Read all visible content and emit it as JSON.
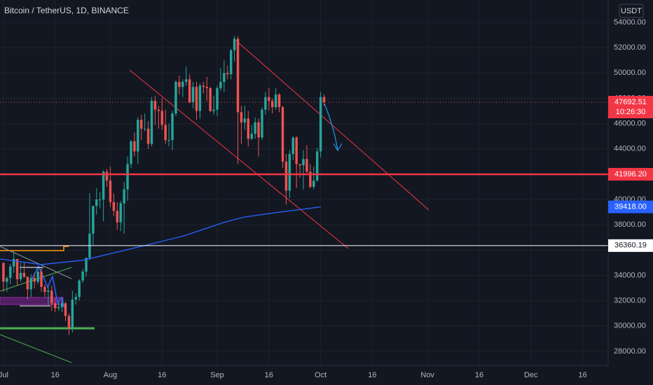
{
  "chart_data": {
    "type": "candlestick",
    "title": "Bitcoin / TetherUS, 1D, BINANCE",
    "currency": "USDT",
    "countdown": "10:26:30",
    "up_color": "#26a69a",
    "down_color": "#ef5350",
    "grid": true,
    "xlim": [
      -1,
      175.4
    ],
    "ylim": [
      26890,
      55770
    ],
    "xticks": [
      {
        "value": 0,
        "label": "Jul"
      },
      {
        "value": 15,
        "label": "16"
      },
      {
        "value": 31,
        "label": "Aug"
      },
      {
        "value": 46,
        "label": "16"
      },
      {
        "value": 62,
        "label": "Sep"
      },
      {
        "value": 77,
        "label": "16"
      },
      {
        "value": 92,
        "label": "Oct"
      },
      {
        "value": 107,
        "label": "16"
      },
      {
        "value": 123,
        "label": "Nov"
      },
      {
        "value": 138,
        "label": "16"
      },
      {
        "value": 153,
        "label": "Dec"
      },
      {
        "value": 168,
        "label": "16"
      }
    ],
    "yticks": [
      {
        "value": 28000,
        "label": "28000.00"
      },
      {
        "value": 30000,
        "label": "30000.00"
      },
      {
        "value": 32000,
        "label": "32000.00"
      },
      {
        "value": 34000,
        "label": "34000.00"
      },
      {
        "value": 36000,
        "label": "36000.00"
      },
      {
        "value": 38000,
        "label": "38000.00"
      },
      {
        "value": 40000,
        "label": "40000.00"
      },
      {
        "value": 42000,
        "label": "42000.00"
      },
      {
        "value": 44000,
        "label": "44000.00"
      },
      {
        "value": 46000,
        "label": "46000.00"
      },
      {
        "value": 48000,
        "label": "48000.00"
      },
      {
        "value": 50000,
        "label": "50000.00"
      },
      {
        "value": 52000,
        "label": "52000.00"
      },
      {
        "value": 54000,
        "label": "54000.00"
      }
    ],
    "x": [
      0,
      1,
      2,
      3,
      4,
      5,
      6,
      7,
      8,
      9,
      10,
      11,
      12,
      13,
      14,
      15,
      16,
      17,
      18,
      19,
      20,
      21,
      22,
      23,
      24,
      25,
      26,
      27,
      28,
      29,
      30,
      31,
      32,
      33,
      34,
      35,
      36,
      37,
      38,
      39,
      40,
      41,
      42,
      43,
      44,
      45,
      46,
      47,
      48,
      49,
      50,
      51,
      52,
      53,
      54,
      55,
      56,
      57,
      58,
      59,
      60,
      61,
      62,
      63,
      64,
      65,
      66,
      67,
      68,
      69,
      70,
      71,
      72,
      73,
      74,
      75,
      76,
      77,
      78,
      79,
      80,
      81,
      82,
      83,
      84,
      85,
      86,
      87,
      88,
      89,
      90,
      91,
      92,
      93
    ],
    "candles": [
      [
        35000,
        35000,
        32700,
        33500
      ],
      [
        33500,
        33900,
        32700,
        33800
      ],
      [
        33800,
        34900,
        33300,
        34700
      ],
      [
        34700,
        35900,
        34200,
        35300
      ],
      [
        35300,
        35300,
        33200,
        33700
      ],
      [
        33700,
        35000,
        33500,
        34200
      ],
      [
        34200,
        35000,
        33800,
        33900
      ],
      [
        33900,
        33900,
        32100,
        32900
      ],
      [
        32900,
        34100,
        32300,
        33800
      ],
      [
        33800,
        34200,
        33000,
        33500
      ],
      [
        33500,
        34600,
        33300,
        34300
      ],
      [
        34300,
        34600,
        32700,
        33100
      ],
      [
        33100,
        33300,
        32300,
        32700
      ],
      [
        32700,
        33100,
        31600,
        32800
      ],
      [
        32800,
        33200,
        31200,
        31800
      ],
      [
        31800,
        32200,
        31100,
        31400
      ],
      [
        31400,
        31900,
        31200,
        31500
      ],
      [
        31500,
        32200,
        31100,
        31800
      ],
      [
        31800,
        31900,
        30400,
        30800
      ],
      [
        30800,
        31000,
        29300,
        29800
      ],
      [
        29800,
        32800,
        29500,
        32100
      ],
      [
        32100,
        32600,
        31700,
        32300
      ],
      [
        32300,
        33700,
        32000,
        33600
      ],
      [
        33600,
        34500,
        33400,
        34300
      ],
      [
        34300,
        35400,
        33900,
        35400
      ],
      [
        35400,
        40500,
        35200,
        37300
      ],
      [
        37300,
        39500,
        36400,
        39500
      ],
      [
        39500,
        40900,
        38800,
        40000
      ],
      [
        40000,
        40600,
        39300,
        40000
      ],
      [
        40000,
        42300,
        38300,
        42200
      ],
      [
        42200,
        42400,
        41000,
        41500
      ],
      [
        41500,
        42600,
        39400,
        39800
      ],
      [
        39800,
        40500,
        38700,
        39100
      ],
      [
        39100,
        39800,
        37600,
        38200
      ],
      [
        38200,
        39900,
        37500,
        39700
      ],
      [
        39700,
        41400,
        37300,
        40800
      ],
      [
        40800,
        43400,
        39900,
        42800
      ],
      [
        42800,
        44700,
        42500,
        44600
      ],
      [
        44600,
        45300,
        43400,
        43800
      ],
      [
        43800,
        46500,
        42800,
        46300
      ],
      [
        46300,
        46700,
        44700,
        45600
      ],
      [
        45600,
        46800,
        45400,
        45600
      ],
      [
        45600,
        46200,
        44000,
        44400
      ],
      [
        44400,
        48100,
        44200,
        47800
      ],
      [
        47800,
        48200,
        45900,
        47100
      ],
      [
        47100,
        47400,
        45600,
        47000
      ],
      [
        47000,
        48000,
        45500,
        45900
      ],
      [
        45900,
        47100,
        44400,
        44700
      ],
      [
        44700,
        46000,
        44200,
        44700
      ],
      [
        44700,
        47000,
        43900,
        46800
      ],
      [
        46800,
        49400,
        46600,
        49300
      ],
      [
        49300,
        49800,
        48300,
        48900
      ],
      [
        48900,
        49500,
        48100,
        49300
      ],
      [
        49300,
        50500,
        49000,
        49500
      ],
      [
        49500,
        49900,
        47600,
        47700
      ],
      [
        47700,
        49300,
        47200,
        48900
      ],
      [
        48900,
        49300,
        46300,
        47000
      ],
      [
        47000,
        49200,
        46400,
        49000
      ],
      [
        49000,
        49300,
        48400,
        48900
      ],
      [
        48900,
        49700,
        47800,
        48800
      ],
      [
        48800,
        48900,
        46900,
        47000
      ],
      [
        47000,
        48200,
        46700,
        47100
      ],
      [
        47100,
        49000,
        46600,
        48800
      ],
      [
        48800,
        50400,
        48600,
        49300
      ],
      [
        49300,
        51000,
        48500,
        50000
      ],
      [
        50000,
        50600,
        49500,
        49900
      ],
      [
        49900,
        51900,
        49500,
        51800
      ],
      [
        51800,
        52900,
        50900,
        52700
      ],
      [
        52700,
        52900,
        42800,
        46900
      ],
      [
        46900,
        47400,
        44400,
        46100
      ],
      [
        46100,
        47400,
        45500,
        46400
      ],
      [
        46400,
        47000,
        44200,
        44800
      ],
      [
        44800,
        45900,
        44700,
        45200
      ],
      [
        45200,
        46500,
        44800,
        46100
      ],
      [
        46100,
        46400,
        43400,
        44900
      ],
      [
        44900,
        47300,
        44700,
        47100
      ],
      [
        47100,
        48500,
        46700,
        48100
      ],
      [
        48100,
        48800,
        47000,
        47800
      ],
      [
        47800,
        48000,
        46800,
        47300
      ],
      [
        47300,
        48800,
        47100,
        48300
      ],
      [
        48300,
        48400,
        46900,
        47300
      ],
      [
        47300,
        47400,
        42500,
        43000
      ],
      [
        43000,
        43600,
        39600,
        40700
      ],
      [
        40700,
        43900,
        40100,
        43600
      ],
      [
        43600,
        45000,
        43100,
        44900
      ],
      [
        44900,
        45000,
        40900,
        42800
      ],
      [
        42800,
        42800,
        41700,
        42700
      ],
      [
        42700,
        43900,
        40800,
        43200
      ],
      [
        43200,
        44300,
        42100,
        42200
      ],
      [
        42200,
        42800,
        40900,
        41000
      ],
      [
        41000,
        42600,
        40800,
        41500
      ],
      [
        41500,
        44100,
        41400,
        43800
      ],
      [
        43800,
        48500,
        43300,
        48100
      ],
      [
        48100,
        48300,
        47400,
        47692.51
      ]
    ],
    "ma": {
      "color": "#2962ff",
      "x": [
        -1,
        11,
        23,
        40,
        52,
        64,
        70,
        80,
        92
      ],
      "values": [
        35300,
        34860,
        35200,
        36300,
        37100,
        38200,
        38620,
        39000,
        39418
      ],
      "value_labels": [
        null,
        null,
        null,
        null,
        null,
        null,
        null,
        null,
        "39418.00"
      ]
    },
    "levels": [
      {
        "price": {
          "value": 41996.2,
          "label": "41996.20"
        },
        "color": "#f23645"
      },
      {
        "price": 36360.19,
        "color": "#ffffff"
      }
    ]
  }
}
